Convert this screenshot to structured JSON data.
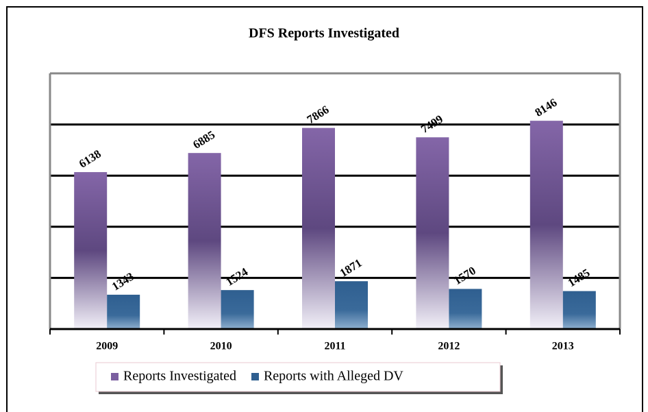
{
  "chart_data": {
    "type": "bar",
    "title": "DFS Reports Investigated",
    "categories": [
      "2009",
      "2010",
      "2011",
      "2012",
      "2013"
    ],
    "series": [
      {
        "name": "Reports Investigated",
        "color": "#7b5fa0",
        "values": [
          6138,
          6885,
          7866,
          7499,
          8146
        ]
      },
      {
        "name": "Reports with Alleged DV",
        "color": "#2f5f90",
        "values": [
          1343,
          1524,
          1871,
          1570,
          1485
        ]
      }
    ],
    "ylim": [
      0,
      10000
    ],
    "yticks": [
      0,
      2000,
      4000,
      6000,
      8000,
      10000
    ],
    "grid": true
  }
}
